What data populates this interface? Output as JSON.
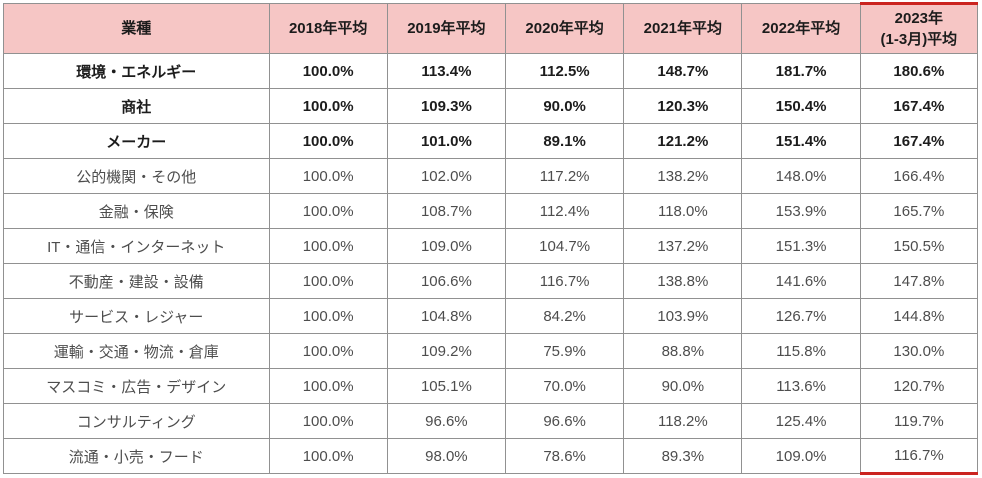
{
  "table": {
    "headers": [
      "業種",
      "2018年平均",
      "2019年平均",
      "2020年平均",
      "2021年平均",
      "2022年平均",
      "2023年\n(1-3月)平均"
    ],
    "rows": [
      {
        "industry": "環境・エネルギー",
        "bold": true,
        "values": [
          "100.0%",
          "113.4%",
          "112.5%",
          "148.7%",
          "181.7%",
          "180.6%"
        ]
      },
      {
        "industry": "商社",
        "bold": true,
        "values": [
          "100.0%",
          "109.3%",
          "90.0%",
          "120.3%",
          "150.4%",
          "167.4%"
        ]
      },
      {
        "industry": "メーカー",
        "bold": true,
        "values": [
          "100.0%",
          "101.0%",
          "89.1%",
          "121.2%",
          "151.4%",
          "167.4%"
        ]
      },
      {
        "industry": "公的機関・その他",
        "bold": false,
        "values": [
          "100.0%",
          "102.0%",
          "117.2%",
          "138.2%",
          "148.0%",
          "166.4%"
        ]
      },
      {
        "industry": "金融・保険",
        "bold": false,
        "values": [
          "100.0%",
          "108.7%",
          "112.4%",
          "118.0%",
          "153.9%",
          "165.7%"
        ]
      },
      {
        "industry": "IT・通信・インターネット",
        "bold": false,
        "values": [
          "100.0%",
          "109.0%",
          "104.7%",
          "137.2%",
          "151.3%",
          "150.5%"
        ]
      },
      {
        "industry": "不動産・建設・設備",
        "bold": false,
        "values": [
          "100.0%",
          "106.6%",
          "116.7%",
          "138.8%",
          "141.6%",
          "147.8%"
        ]
      },
      {
        "industry": "サービス・レジャー",
        "bold": false,
        "values": [
          "100.0%",
          "104.8%",
          "84.2%",
          "103.9%",
          "126.7%",
          "144.8%"
        ]
      },
      {
        "industry": "運輸・交通・物流・倉庫",
        "bold": false,
        "values": [
          "100.0%",
          "109.2%",
          "75.9%",
          "88.8%",
          "115.8%",
          "130.0%"
        ]
      },
      {
        "industry": "マスコミ・広告・デザイン",
        "bold": false,
        "values": [
          "100.0%",
          "105.1%",
          "70.0%",
          "90.0%",
          "113.6%",
          "120.7%"
        ]
      },
      {
        "industry": "コンサルティング",
        "bold": false,
        "values": [
          "100.0%",
          "96.6%",
          "96.6%",
          "118.2%",
          "125.4%",
          "119.7%"
        ]
      },
      {
        "industry": "流通・小売・フード",
        "bold": false,
        "values": [
          "100.0%",
          "98.0%",
          "78.6%",
          "89.3%",
          "109.0%",
          "116.7%"
        ]
      }
    ]
  },
  "colors": {
    "header_background": "#f6c6c5",
    "highlight_border": "#cb2420",
    "grid_line": "#919191",
    "bold_text": "#1c1c1c",
    "normal_text": "#4d4d4d"
  },
  "chart_data": {
    "type": "table",
    "title": "",
    "unit": "%",
    "columns": [
      "業種",
      "2018年平均",
      "2019年平均",
      "2020年平均",
      "2021年平均",
      "2022年平均",
      "2023年(1-3月)平均"
    ],
    "highlighted_column": "2023年(1-3月)平均",
    "rows": [
      [
        "環境・エネルギー",
        100.0,
        113.4,
        112.5,
        148.7,
        181.7,
        180.6
      ],
      [
        "商社",
        100.0,
        109.3,
        90.0,
        120.3,
        150.4,
        167.4
      ],
      [
        "メーカー",
        100.0,
        101.0,
        89.1,
        121.2,
        151.4,
        167.4
      ],
      [
        "公的機関・その他",
        100.0,
        102.0,
        117.2,
        138.2,
        148.0,
        166.4
      ],
      [
        "金融・保険",
        100.0,
        108.7,
        112.4,
        118.0,
        153.9,
        165.7
      ],
      [
        "IT・通信・インターネット",
        100.0,
        109.0,
        104.7,
        137.2,
        151.3,
        150.5
      ],
      [
        "不動産・建設・設備",
        100.0,
        106.6,
        116.7,
        138.8,
        141.6,
        147.8
      ],
      [
        "サービス・レジャー",
        100.0,
        104.8,
        84.2,
        103.9,
        126.7,
        144.8
      ],
      [
        "運輸・交通・物流・倉庫",
        100.0,
        109.2,
        75.9,
        88.8,
        115.8,
        130.0
      ],
      [
        "マスコミ・広告・デザイン",
        100.0,
        105.1,
        70.0,
        90.0,
        113.6,
        120.7
      ],
      [
        "コンサルティング",
        100.0,
        96.6,
        96.6,
        118.2,
        125.4,
        119.7
      ],
      [
        "流通・小売・フード",
        100.0,
        98.0,
        78.6,
        89.3,
        109.0,
        116.7
      ]
    ]
  }
}
